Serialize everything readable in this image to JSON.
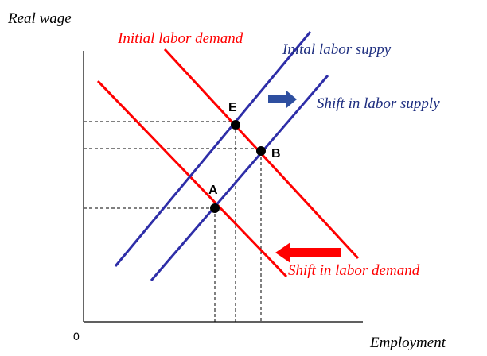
{
  "axes": {
    "y_label": "Real wage",
    "x_label": "Employment",
    "origin": "0"
  },
  "curves": [
    {
      "label": "Initial labor demand"
    },
    {
      "label": "Inital labor suppy"
    }
  ],
  "points": [
    {
      "label": "E"
    },
    {
      "label": "B"
    },
    {
      "label": "A"
    }
  ],
  "annotations": [
    {
      "text": "Shift in labor supply"
    },
    {
      "text": "Shift in labor demand"
    }
  ]
}
